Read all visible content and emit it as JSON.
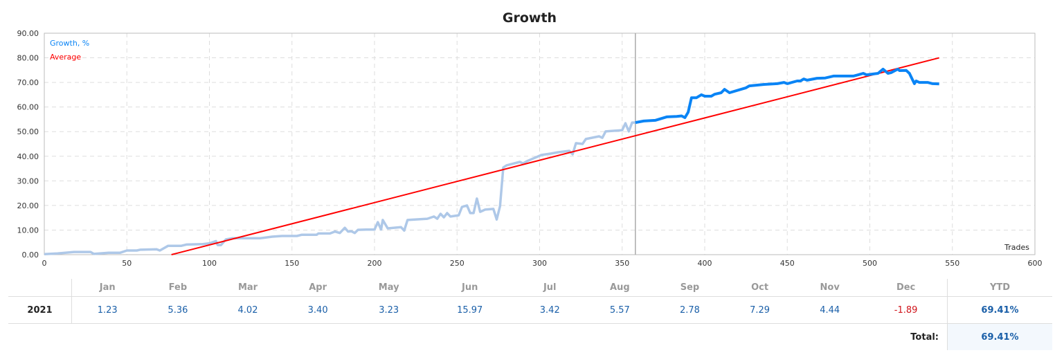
{
  "chart_data": {
    "type": "line",
    "title": "Growth",
    "xlabel": "Trades",
    "ylabel": "",
    "xlim": [
      0,
      600
    ],
    "ylim": [
      0,
      90
    ],
    "xticks": [
      "0",
      "50",
      "100",
      "150",
      "200",
      "250",
      "300",
      "350",
      "400",
      "450",
      "500",
      "550",
      "600"
    ],
    "yticks": [
      "0.00",
      "10.00",
      "20.00",
      "30.00",
      "40.00",
      "50.00",
      "60.00",
      "70.00",
      "80.00",
      "90.00"
    ],
    "grid": true,
    "legend_placement": "top-left",
    "highlight_from_trade": 358,
    "colors": {
      "growth_past": "#aec8e8",
      "growth_recent": "#0a84f5",
      "average": "#ff0000",
      "marker_line": "#aaaaaa"
    },
    "series": [
      {
        "name": "Growth, %",
        "points": [
          [
            0,
            0.2
          ],
          [
            8,
            0.5
          ],
          [
            18,
            1.1
          ],
          [
            28,
            1.1
          ],
          [
            30,
            0.3
          ],
          [
            39,
            0.8
          ],
          [
            46,
            0.8
          ],
          [
            50,
            1.7
          ],
          [
            56,
            1.7
          ],
          [
            58,
            2.0
          ],
          [
            68,
            2.2
          ],
          [
            70,
            1.7
          ],
          [
            75,
            3.6
          ],
          [
            83,
            3.6
          ],
          [
            86,
            4.1
          ],
          [
            96,
            4.3
          ],
          [
            100,
            4.6
          ],
          [
            104,
            5.5
          ],
          [
            105,
            3.9
          ],
          [
            107,
            3.9
          ],
          [
            110,
            6.2
          ],
          [
            114,
            6.7
          ],
          [
            131,
            6.7
          ],
          [
            138,
            7.3
          ],
          [
            144,
            7.6
          ],
          [
            153,
            7.6
          ],
          [
            156,
            8.1
          ],
          [
            165,
            8.1
          ],
          [
            166,
            8.6
          ],
          [
            173,
            8.6
          ],
          [
            176,
            9.4
          ],
          [
            179,
            8.8
          ],
          [
            182,
            10.9
          ],
          [
            184,
            9.4
          ],
          [
            186,
            9.5
          ],
          [
            188,
            8.8
          ],
          [
            190,
            10.1
          ],
          [
            195,
            10.2
          ],
          [
            200,
            10.2
          ],
          [
            202,
            13.2
          ],
          [
            204,
            10.2
          ],
          [
            205,
            14.1
          ],
          [
            208,
            10.7
          ],
          [
            216,
            11.2
          ],
          [
            218,
            9.8
          ],
          [
            220,
            14.1
          ],
          [
            232,
            14.6
          ],
          [
            236,
            15.5
          ],
          [
            238,
            14.6
          ],
          [
            240,
            16.6
          ],
          [
            242,
            15.2
          ],
          [
            244,
            16.9
          ],
          [
            246,
            15.5
          ],
          [
            251,
            16.0
          ],
          [
            253,
            19.4
          ],
          [
            256,
            20.0
          ],
          [
            258,
            16.9
          ],
          [
            260,
            16.9
          ],
          [
            262,
            22.8
          ],
          [
            264,
            17.4
          ],
          [
            267,
            18.3
          ],
          [
            272,
            18.6
          ],
          [
            274,
            14.3
          ],
          [
            276,
            19.7
          ],
          [
            278,
            35.4
          ],
          [
            280,
            36.3
          ],
          [
            288,
            37.7
          ],
          [
            290,
            37.1
          ],
          [
            293,
            38.2
          ],
          [
            299,
            39.9
          ],
          [
            301,
            40.5
          ],
          [
            307,
            41.1
          ],
          [
            311,
            41.6
          ],
          [
            318,
            42.2
          ],
          [
            320,
            40.8
          ],
          [
            322,
            45.3
          ],
          [
            326,
            45.0
          ],
          [
            328,
            47.0
          ],
          [
            336,
            48.1
          ],
          [
            338,
            47.5
          ],
          [
            340,
            50.1
          ],
          [
            350,
            50.6
          ],
          [
            352,
            53.4
          ],
          [
            354,
            50.1
          ],
          [
            356,
            53.7
          ],
          [
            358,
            53.7
          ],
          [
            363,
            54.3
          ],
          [
            370,
            54.6
          ],
          [
            377,
            56.0
          ],
          [
            383,
            56.2
          ],
          [
            386,
            56.4
          ],
          [
            388,
            55.7
          ],
          [
            390,
            57.9
          ],
          [
            392,
            63.8
          ],
          [
            395,
            63.8
          ],
          [
            398,
            65.0
          ],
          [
            400,
            64.4
          ],
          [
            404,
            64.4
          ],
          [
            406,
            65.2
          ],
          [
            410,
            65.8
          ],
          [
            412,
            67.2
          ],
          [
            415,
            65.8
          ],
          [
            425,
            67.8
          ],
          [
            427,
            68.6
          ],
          [
            436,
            69.2
          ],
          [
            444,
            69.5
          ],
          [
            448,
            70.0
          ],
          [
            450,
            69.5
          ],
          [
            456,
            70.6
          ],
          [
            458,
            70.6
          ],
          [
            460,
            71.4
          ],
          [
            462,
            70.9
          ],
          [
            468,
            71.7
          ],
          [
            473,
            71.8
          ],
          [
            478,
            72.6
          ],
          [
            490,
            72.6
          ],
          [
            493,
            73.1
          ],
          [
            496,
            73.7
          ],
          [
            498,
            73.1
          ],
          [
            505,
            73.7
          ],
          [
            508,
            75.4
          ],
          [
            511,
            73.7
          ],
          [
            513,
            74.0
          ],
          [
            517,
            75.4
          ],
          [
            518,
            74.8
          ],
          [
            522,
            74.9
          ],
          [
            524,
            73.7
          ],
          [
            527,
            69.5
          ],
          [
            528,
            70.6
          ],
          [
            530,
            70.0
          ],
          [
            535,
            70.0
          ],
          [
            538,
            69.5
          ],
          [
            542,
            69.4
          ]
        ]
      },
      {
        "name": "Average",
        "points": [
          [
            77,
            0
          ],
          [
            542,
            80
          ]
        ]
      }
    ]
  },
  "table": {
    "months": [
      "Jan",
      "Feb",
      "Mar",
      "Apr",
      "May",
      "Jun",
      "Jul",
      "Aug",
      "Sep",
      "Oct",
      "Nov",
      "Dec"
    ],
    "ytd_header": "YTD",
    "year": "2021",
    "values": [
      "1.23",
      "5.36",
      "4.02",
      "3.40",
      "3.23",
      "15.97",
      "3.42",
      "5.57",
      "2.78",
      "7.29",
      "4.44",
      "-1.89"
    ],
    "ytd": "69.41%",
    "total_label": "Total:",
    "total": "69.41%"
  }
}
